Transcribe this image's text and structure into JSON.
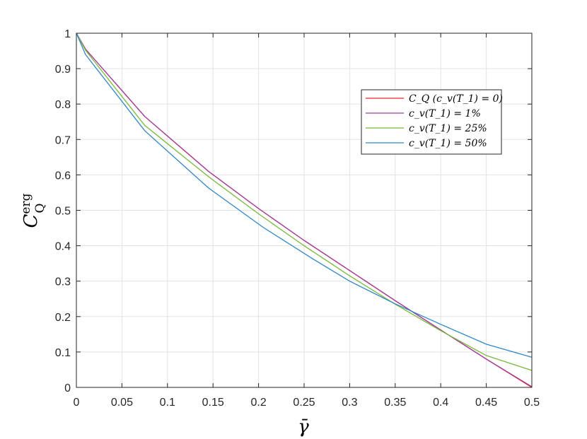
{
  "chart_data": {
    "type": "line",
    "xlabel": "γ̄",
    "ylabel": {
      "base": "C",
      "sub": "Q",
      "sup": "erg"
    },
    "xlim": [
      0,
      0.5
    ],
    "ylim": [
      0,
      1
    ],
    "xticks": [
      "0",
      "0.05",
      "0.1",
      "0.15",
      "0.2",
      "0.25",
      "0.3",
      "0.35",
      "0.4",
      "0.45",
      "0.5"
    ],
    "xtick_values": [
      0,
      0.05,
      0.1,
      0.15,
      0.2,
      0.25,
      0.3,
      0.35,
      0.4,
      0.45,
      0.5
    ],
    "yticks": [
      "0",
      "0.1",
      "0.2",
      "0.3",
      "0.4",
      "0.5",
      "0.6",
      "0.7",
      "0.8",
      "0.9",
      "1"
    ],
    "ytick_values": [
      0,
      0.1,
      0.2,
      0.3,
      0.4,
      0.5,
      0.6,
      0.7,
      0.8,
      0.9,
      1
    ],
    "grid": true,
    "legend_position": "top-right",
    "series": [
      {
        "name": "C_Q (c_v(T_1) = 0)",
        "color": "#e8242b",
        "x": [
          0,
          0.01,
          0.075,
          0.145,
          0.2,
          0.25,
          0.3,
          0.35,
          0.4,
          0.45,
          0.5
        ],
        "y": [
          1,
          0.955,
          0.765,
          0.61,
          0.505,
          0.415,
          0.33,
          0.245,
          0.162,
          0.08,
          0.0
        ]
      },
      {
        "name": "c_v(T_1) = 1%",
        "color": "#a03ea0",
        "x": [
          0,
          0.01,
          0.075,
          0.145,
          0.2,
          0.25,
          0.3,
          0.35,
          0.4,
          0.45,
          0.5
        ],
        "y": [
          1,
          0.955,
          0.765,
          0.61,
          0.505,
          0.415,
          0.33,
          0.245,
          0.162,
          0.08,
          0.002
        ]
      },
      {
        "name": "c_v(T_1) = 25%",
        "color": "#77b839",
        "x": [
          0,
          0.01,
          0.075,
          0.145,
          0.2,
          0.25,
          0.3,
          0.35,
          0.4,
          0.45,
          0.5
        ],
        "y": [
          1,
          0.952,
          0.74,
          0.595,
          0.49,
          0.4,
          0.315,
          0.235,
          0.16,
          0.09,
          0.048
        ]
      },
      {
        "name": "c_v(T_1) = 50%",
        "color": "#2f86c7",
        "x": [
          0,
          0.01,
          0.075,
          0.145,
          0.205,
          0.26,
          0.3,
          0.35,
          0.4,
          0.45,
          0.5
        ],
        "y": [
          1,
          0.94,
          0.725,
          0.563,
          0.452,
          0.362,
          0.3,
          0.236,
          0.178,
          0.122,
          0.085
        ]
      }
    ]
  }
}
